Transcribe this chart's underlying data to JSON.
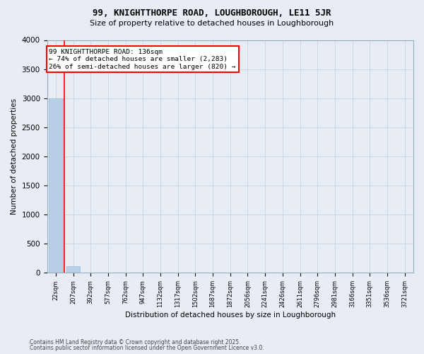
{
  "title1": "99, KNIGHTTHORPE ROAD, LOUGHBOROUGH, LE11 5JR",
  "title2": "Size of property relative to detached houses in Loughborough",
  "xlabel": "Distribution of detached houses by size in Loughborough",
  "ylabel": "Number of detached properties",
  "footer1": "Contains HM Land Registry data © Crown copyright and database right 2025.",
  "footer2": "Contains public sector information licensed under the Open Government Licence v3.0.",
  "annotation_line1": "99 KNIGHTTHORPE ROAD: 136sqm",
  "annotation_line2": "← 74% of detached houses are smaller (2,283)",
  "annotation_line3": "26% of semi-detached houses are larger (820) →",
  "bar_categories": [
    "22sqm",
    "207sqm",
    "392sqm",
    "577sqm",
    "762sqm",
    "947sqm",
    "1132sqm",
    "1317sqm",
    "1502sqm",
    "1687sqm",
    "1872sqm",
    "2056sqm",
    "2241sqm",
    "2426sqm",
    "2611sqm",
    "2796sqm",
    "2981sqm",
    "3166sqm",
    "3351sqm",
    "3536sqm",
    "3721sqm"
  ],
  "bar_values": [
    3000,
    120,
    0,
    0,
    0,
    0,
    0,
    0,
    0,
    0,
    0,
    0,
    0,
    0,
    0,
    0,
    0,
    0,
    0,
    0,
    0
  ],
  "bar_color": "#b8cfe8",
  "bar_edge_color": "#9ab8d8",
  "grid_color": "#c8d4e4",
  "bg_color": "#e8edf5",
  "red_line_x": 0.5,
  "ylim": [
    0,
    4000
  ],
  "yticks": [
    0,
    500,
    1000,
    1500,
    2000,
    2500,
    3000,
    3500,
    4000
  ]
}
